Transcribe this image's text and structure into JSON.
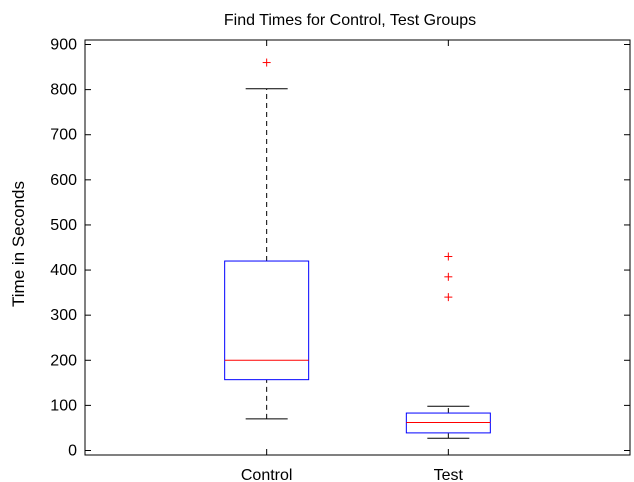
{
  "chart_data": {
    "type": "box",
    "title": "Find Times for Control, Test Groups",
    "xlabel": "",
    "ylabel": "Time in Seconds",
    "ylim": [
      -10,
      910
    ],
    "yticks": [
      0,
      100,
      200,
      300,
      400,
      500,
      600,
      700,
      800,
      900
    ],
    "grid": false,
    "categories": [
      "Control",
      "Test"
    ],
    "boxes": [
      {
        "category": "Control",
        "whisker_low": 70,
        "q1": 157,
        "median": 200,
        "q3": 420,
        "whisker_high": 802,
        "outliers": [
          860
        ]
      },
      {
        "category": "Test",
        "whisker_low": 27,
        "q1": 39,
        "median": 62,
        "q3": 83,
        "whisker_high": 98,
        "outliers": [
          340,
          385,
          430
        ]
      }
    ],
    "colors": {
      "box": "#0000ff",
      "median": "#ff0000",
      "whisker": "#000000",
      "outlier": "#ff0000",
      "axis": "#000000"
    }
  }
}
